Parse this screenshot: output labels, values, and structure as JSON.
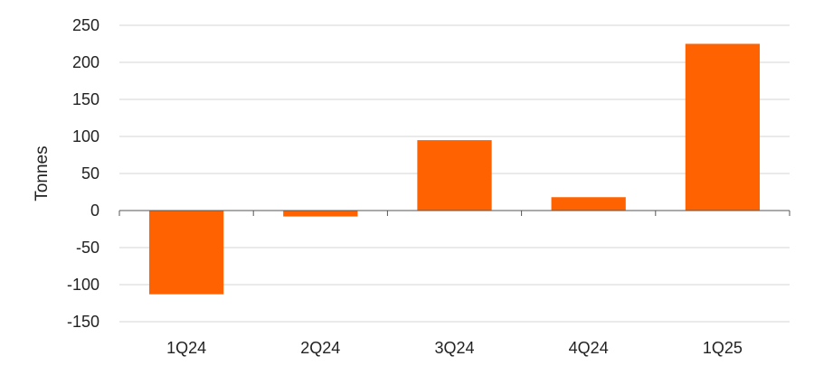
{
  "chart_data": {
    "type": "bar",
    "categories": [
      "1Q24",
      "2Q24",
      "3Q24",
      "4Q24",
      "1Q25"
    ],
    "values": [
      -113,
      -8,
      95,
      18,
      225
    ],
    "title": "",
    "xlabel": "",
    "ylabel": "Tonnes",
    "ylim": [
      -150,
      250
    ],
    "yticks": [
      250,
      200,
      150,
      100,
      50,
      0,
      -50,
      -100,
      -150
    ],
    "grid": true,
    "bar_color": "#FF6200"
  }
}
